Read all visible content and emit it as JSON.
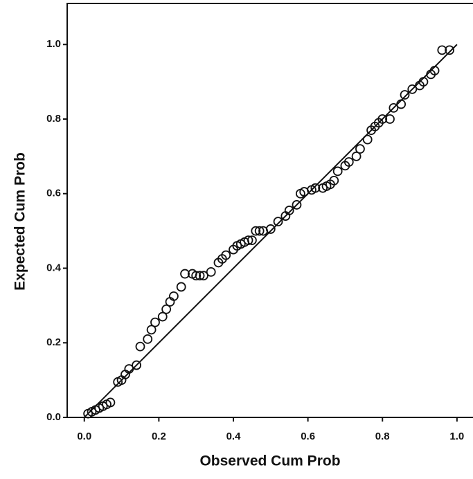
{
  "chart_data": {
    "type": "scatter",
    "x_label": "Observed Cum Prob",
    "y_label": "Expected Cum Prob",
    "xlim": [
      -0.046,
      1.043
    ],
    "ylim": [
      0,
      1.11
    ],
    "xticks": [
      {
        "value": 0,
        "label": "0.0"
      },
      0.2,
      0.4,
      0.6,
      0.8,
      {
        "value": 1,
        "label": "1.0"
      }
    ],
    "yticks": [
      {
        "value": 0,
        "label": "0.0"
      },
      0.2,
      0.4,
      0.6,
      0.8,
      {
        "value": 1,
        "label": "1.0"
      }
    ],
    "color": "#111111",
    "x": [
      0.01,
      0.02,
      0.03,
      0.04,
      0.05,
      0.06,
      0.07,
      0.09,
      0.1,
      0.11,
      0.12,
      0.14,
      0.15,
      0.17,
      0.18,
      0.19,
      0.21,
      0.22,
      0.23,
      0.24,
      0.26,
      0.27,
      0.29,
      0.3,
      0.31,
      0.32,
      0.34,
      0.36,
      0.37,
      0.38,
      0.4,
      0.41,
      0.42,
      0.43,
      0.44,
      0.45,
      0.46,
      0.47,
      0.48,
      0.5,
      0.52,
      0.54,
      0.55,
      0.57,
      0.58,
      0.59,
      0.61,
      0.62,
      0.64,
      0.65,
      0.66,
      0.67,
      0.68,
      0.7,
      0.71,
      0.73,
      0.74,
      0.76,
      0.77,
      0.78,
      0.79,
      0.8,
      0.82,
      0.83,
      0.85,
      0.86,
      0.88,
      0.9,
      0.91,
      0.93,
      0.94,
      0.96,
      0.98
    ],
    "values": [
      0.01,
      0.015,
      0.02,
      0.025,
      0.03,
      0.035,
      0.04,
      0.095,
      0.1,
      0.115,
      0.13,
      0.14,
      0.19,
      0.21,
      0.235,
      0.255,
      0.27,
      0.29,
      0.31,
      0.325,
      0.35,
      0.385,
      0.385,
      0.38,
      0.38,
      0.38,
      0.39,
      0.415,
      0.425,
      0.435,
      0.45,
      0.46,
      0.465,
      0.47,
      0.475,
      0.475,
      0.5,
      0.5,
      0.5,
      0.505,
      0.525,
      0.54,
      0.555,
      0.57,
      0.6,
      0.605,
      0.61,
      0.615,
      0.615,
      0.62,
      0.625,
      0.635,
      0.66,
      0.675,
      0.685,
      0.7,
      0.72,
      0.745,
      0.77,
      0.78,
      0.79,
      0.8,
      0.8,
      0.83,
      0.84,
      0.865,
      0.88,
      0.89,
      0.9,
      0.92,
      0.93,
      0.985,
      0.985
    ],
    "reference_line": {
      "x": [
        0,
        1
      ],
      "values": [
        0,
        1
      ]
    }
  }
}
